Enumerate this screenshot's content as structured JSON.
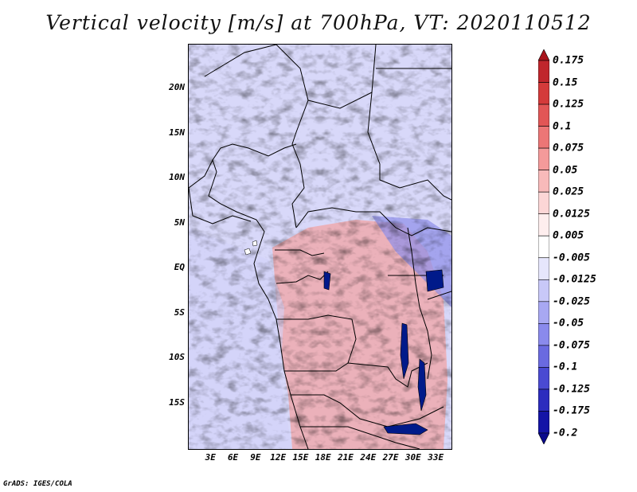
{
  "title": "Vertical velocity [m/s] at 700hPa, VT: 2020110512",
  "credit": "GrADS: IGES/COLA",
  "map": {
    "lon_range": [
      0,
      35
    ],
    "lat_range": [
      -20,
      25
    ],
    "y_ticks": [
      {
        "lat": 20,
        "label": "20N"
      },
      {
        "lat": 15,
        "label": "15N"
      },
      {
        "lat": 10,
        "label": "10N"
      },
      {
        "lat": 5,
        "label": "5N"
      },
      {
        "lat": 0,
        "label": "EQ"
      },
      {
        "lat": -5,
        "label": "5S"
      },
      {
        "lat": -10,
        "label": "10S"
      },
      {
        "lat": -15,
        "label": "15S"
      }
    ],
    "x_ticks": [
      {
        "lon": 3,
        "label": "3E"
      },
      {
        "lon": 6,
        "label": "6E"
      },
      {
        "lon": 9,
        "label": "9E"
      },
      {
        "lon": 12,
        "label": "12E"
      },
      {
        "lon": 15,
        "label": "15E"
      },
      {
        "lon": 18,
        "label": "18E"
      },
      {
        "lon": 21,
        "label": "21E"
      },
      {
        "lon": 24,
        "label": "24E"
      },
      {
        "lon": 27,
        "label": "27E"
      },
      {
        "lon": 30,
        "label": "30E"
      },
      {
        "lon": 33,
        "label": "33E"
      }
    ]
  },
  "colorbar": {
    "labels": [
      "0.175",
      "0.15",
      "0.125",
      "0.1",
      "0.075",
      "0.05",
      "0.025",
      "0.0125",
      "0.005",
      "-0.005",
      "-0.0125",
      "-0.025",
      "-0.05",
      "-0.075",
      "-0.1",
      "-0.125",
      "-0.175",
      "-0.2"
    ],
    "colors": [
      "#a8141c",
      "#c0262c",
      "#d43a3a",
      "#e25656",
      "#ec7676",
      "#f49a9a",
      "#f8baba",
      "#fcd6d6",
      "#feeeee",
      "#ffffff",
      "#e6e6fc",
      "#c8c8f8",
      "#a8a8f2",
      "#8a8aec",
      "#6a6ae0",
      "#4a4ad2",
      "#2c2cbe",
      "#1414a6",
      "#0a0a8c"
    ]
  }
}
